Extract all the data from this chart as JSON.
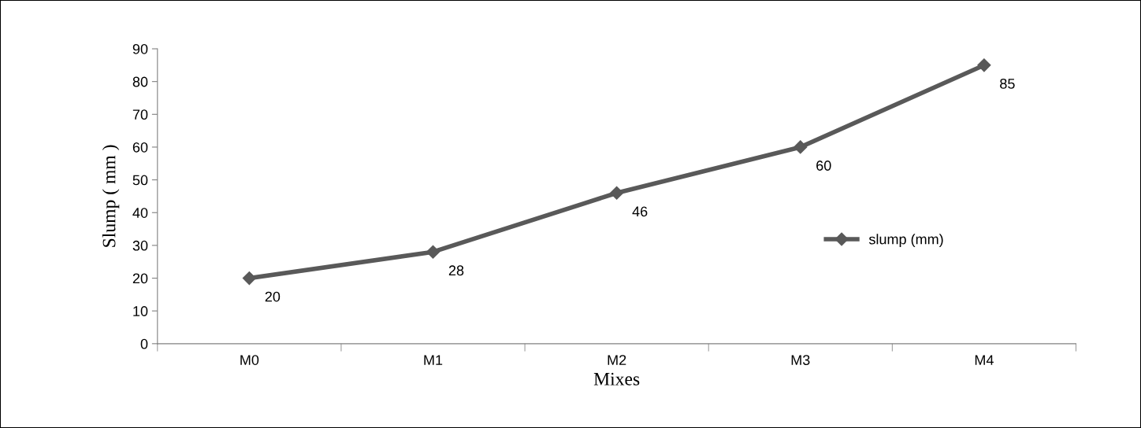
{
  "chart_data": {
    "type": "line",
    "xlabel": "Mixes",
    "ylabel": "Slump ( mm )",
    "categories": [
      "M0",
      "M1",
      "M2",
      "M3",
      "M4"
    ],
    "series": [
      {
        "name": "slump (mm)",
        "color": "#595959",
        "values": [
          20,
          28,
          46,
          60,
          85
        ]
      }
    ],
    "ylim": [
      0,
      90
    ],
    "yticks": [
      0,
      10,
      20,
      30,
      40,
      50,
      60,
      70,
      80,
      90
    ],
    "marker": "diamond",
    "line_style": "solid",
    "data_labels": true,
    "legend": "right",
    "grid": false
  }
}
